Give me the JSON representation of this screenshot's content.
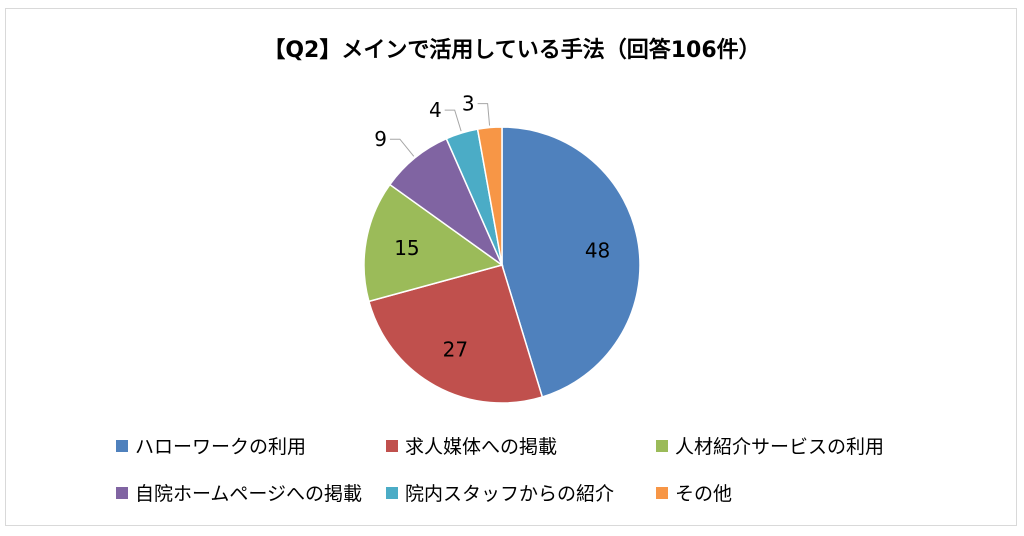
{
  "chart_data": {
    "type": "pie",
    "title": "【Q2】メインで活用している手法（回答106件）",
    "categories": [
      "ハローワークの利用",
      "求人媒体への掲載",
      "人材紹介サービスの利用",
      "自院ホームページへの掲載",
      "院内スタッフからの紹介",
      "その他"
    ],
    "values": [
      48,
      27,
      15,
      9,
      4,
      3
    ],
    "colors": [
      "#4f81bd",
      "#c0504d",
      "#9bbb59",
      "#8064a2",
      "#4bacc6",
      "#f79646"
    ],
    "legend_position": "bottom",
    "data_labels": true
  }
}
